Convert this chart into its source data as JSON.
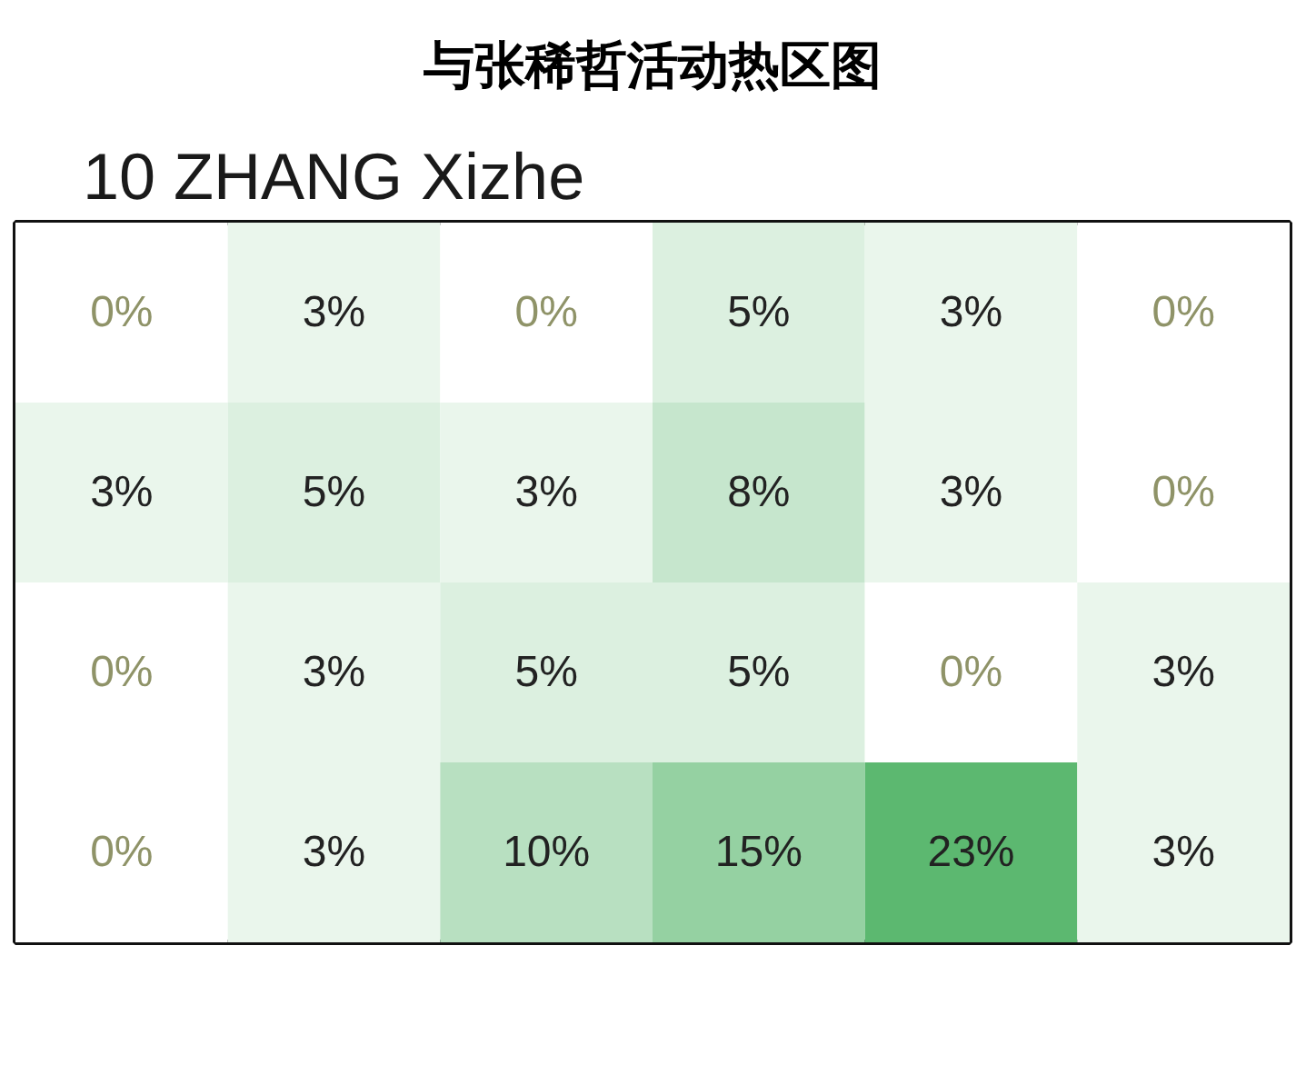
{
  "chart_data": {
    "type": "heatmap",
    "title": "与张稀哲活动热区图",
    "subtitle": "10 ZHANG Xizhe",
    "categories": [
      null,
      null,
      null,
      null,
      null,
      null
    ],
    "y_categories": [
      null,
      null,
      null,
      null
    ],
    "cells": [
      [
        0,
        3,
        0,
        5,
        3,
        0
      ],
      [
        3,
        5,
        3,
        8,
        3,
        0
      ],
      [
        0,
        3,
        5,
        5,
        0,
        3
      ],
      [
        0,
        3,
        10,
        15,
        23,
        3
      ]
    ],
    "cell_labels": [
      [
        "0%",
        "3%",
        "0%",
        "5%",
        "3%",
        "0%"
      ],
      [
        "3%",
        "5%",
        "3%",
        "8%",
        "3%",
        "0%"
      ],
      [
        "0%",
        "3%",
        "5%",
        "5%",
        "0%",
        "3%"
      ],
      [
        "0%",
        "3%",
        "10%",
        "15%",
        "23%",
        "3%"
      ]
    ],
    "color": "#5cb870",
    "tick_labels": false
  }
}
